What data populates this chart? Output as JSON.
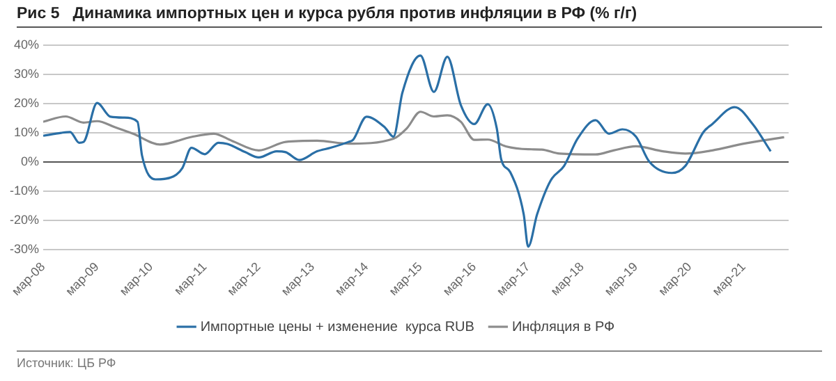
{
  "chart_data": {
    "type": "line",
    "title": "Рис 5   Динамика импортных цен и курса рубля против инфляции в РФ (% г/г)",
    "annotations": [
      "Источник: ЦБ РФ"
    ],
    "series": [
      {
        "name": "Импортные цены + изменение  курса RUB",
        "color": "#2a6fa6",
        "x": [
          "2008-03",
          "2008-07",
          "2008-09",
          "2008-11",
          "2008-12",
          "2009-03",
          "2009-06",
          "2009-09",
          "2009-12",
          "2010-01",
          "2010-04",
          "2010-08",
          "2010-10",
          "2010-12",
          "2011-03",
          "2011-06",
          "2011-08",
          "2011-12",
          "2012-03",
          "2012-07",
          "2012-09",
          "2012-12",
          "2013-04",
          "2013-07",
          "2013-11",
          "2013-12",
          "2014-03",
          "2014-07",
          "2014-09",
          "2014-11",
          "2015-03",
          "2015-06",
          "2015-09",
          "2015-12",
          "2016-03",
          "2016-06",
          "2016-08",
          "2016-09",
          "2016-11",
          "2017-02",
          "2017-03",
          "2017-05",
          "2017-08",
          "2017-11",
          "2018-02",
          "2018-06",
          "2018-09",
          "2018-12",
          "2019-03",
          "2019-06",
          "2019-11",
          "2020-02",
          "2020-06",
          "2020-08",
          "2021-01",
          "2021-05",
          "2021-09"
        ],
        "values": [
          9.0,
          10.0,
          10.3,
          6.6,
          6.9,
          20.2,
          15.5,
          15.2,
          13.8,
          2.3,
          -5.9,
          -4.9,
          -2.0,
          4.9,
          2.7,
          6.6,
          6.2,
          3.4,
          1.6,
          3.7,
          3.4,
          0.7,
          3.7,
          4.9,
          6.9,
          7.6,
          15.5,
          12.0,
          8.7,
          23.8,
          36.4,
          24.0,
          36.0,
          19.5,
          13.0,
          19.8,
          11.6,
          0.9,
          -3.4,
          -17.8,
          -28.9,
          -17.8,
          -6.3,
          -1.3,
          8.0,
          14.3,
          9.7,
          11.2,
          8.7,
          0.1,
          -3.7,
          -1.3,
          10.2,
          13.0,
          18.8,
          13.0,
          3.7
        ]
      },
      {
        "name": "Инфляция в РФ",
        "color": "#8c8c8c",
        "x": [
          "2008-03",
          "2008-08",
          "2008-12",
          "2009-03",
          "2009-07",
          "2009-11",
          "2010-05",
          "2010-12",
          "2011-05",
          "2011-09",
          "2012-03",
          "2012-09",
          "2013-04",
          "2013-11",
          "2014-09",
          "2014-12",
          "2015-03",
          "2015-06",
          "2015-09",
          "2015-12",
          "2016-03",
          "2016-06",
          "2016-10",
          "2017-03",
          "2017-06",
          "2017-10",
          "2018-06",
          "2018-10",
          "2019-03",
          "2019-09",
          "2020-02",
          "2020-08",
          "2021-03",
          "2021-12"
        ],
        "values": [
          13.8,
          15.6,
          13.5,
          14.0,
          11.9,
          9.7,
          6.0,
          8.6,
          9.7,
          7.3,
          4.0,
          6.9,
          7.3,
          6.3,
          8.0,
          11.6,
          17.2,
          15.6,
          16.0,
          13.8,
          7.6,
          7.7,
          5.4,
          4.4,
          4.3,
          2.9,
          2.6,
          4.0,
          5.4,
          3.7,
          2.9,
          4.0,
          6.3,
          8.5
        ]
      }
    ],
    "xlim": [
      "2008-03",
      "2022-01"
    ],
    "xticks": [
      {
        "value": "2008-03",
        "label": "мар-08"
      },
      {
        "value": "2009-03",
        "label": "мар-09"
      },
      {
        "value": "2010-03",
        "label": "мар-10"
      },
      {
        "value": "2011-03",
        "label": "мар-11"
      },
      {
        "value": "2012-03",
        "label": "мар-12"
      },
      {
        "value": "2013-03",
        "label": "мар-13"
      },
      {
        "value": "2014-03",
        "label": "мар-14"
      },
      {
        "value": "2015-03",
        "label": "мар-15"
      },
      {
        "value": "2016-03",
        "label": "мар-16"
      },
      {
        "value": "2017-03",
        "label": "мар-17"
      },
      {
        "value": "2018-03",
        "label": "мар-18"
      },
      {
        "value": "2019-03",
        "label": "мар-19"
      },
      {
        "value": "2020-03",
        "label": "мар-20"
      },
      {
        "value": "2021-03",
        "label": "мар-21"
      }
    ],
    "ylim": [
      -30,
      40
    ],
    "yticks": [
      {
        "value": -30,
        "label": "-30%"
      },
      {
        "value": -20,
        "label": "-20%"
      },
      {
        "value": -10,
        "label": "-10%"
      },
      {
        "value": 0,
        "label": "0%"
      },
      {
        "value": 10,
        "label": "10%"
      },
      {
        "value": 20,
        "label": "20%"
      },
      {
        "value": 30,
        "label": "30%"
      },
      {
        "value": 40,
        "label": "40%"
      }
    ],
    "grid": "y",
    "legend": "bottom",
    "marker": "none",
    "line_style": "solid"
  }
}
